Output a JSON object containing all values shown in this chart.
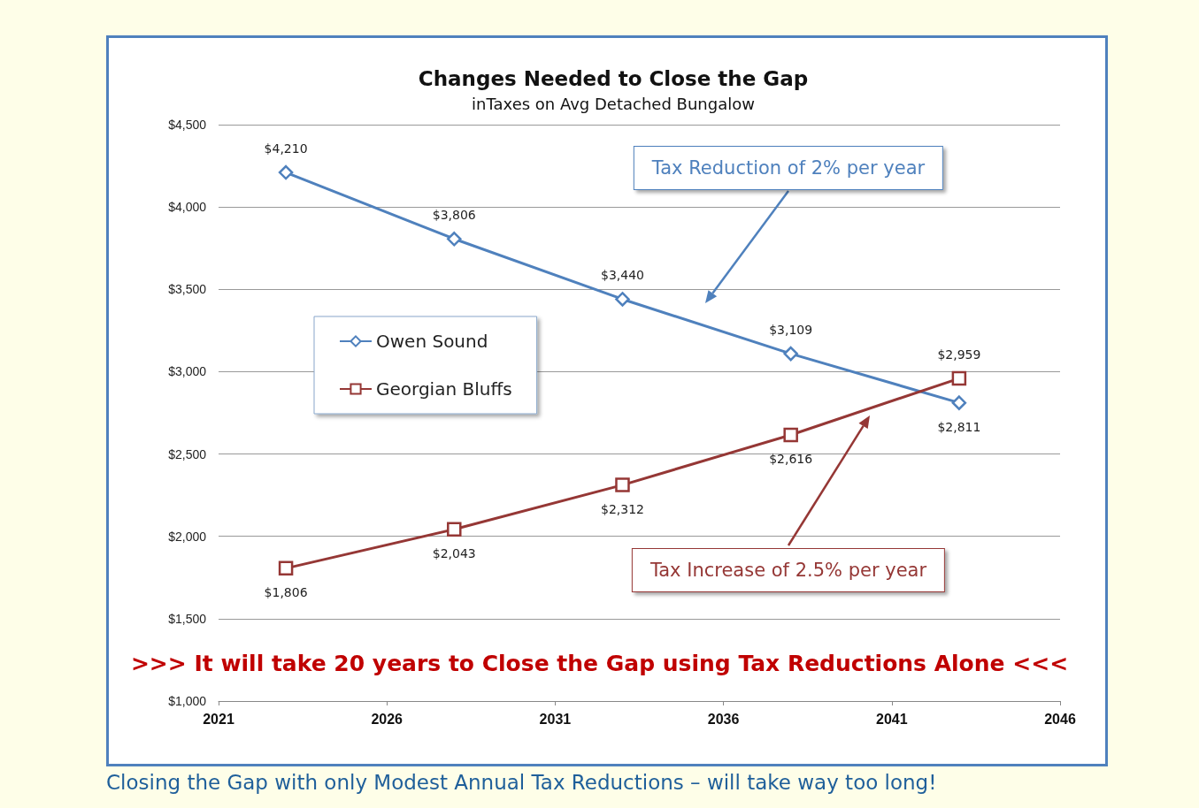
{
  "chart_data": {
    "type": "line",
    "title": "Changes Needed to Close the Gap",
    "subtitle": "inTaxes on Avg Detached Bungalow",
    "x": [
      2023,
      2028,
      2033,
      2038,
      2043
    ],
    "series": [
      {
        "name": "Owen Sound",
        "color": "#4f81bd",
        "marker": "diamond",
        "values": [
          4210,
          3806,
          3440,
          3109,
          2811
        ],
        "value_labels": [
          "$4,210",
          "$3,806",
          "$3,440",
          "$3,109",
          "$2,811"
        ]
      },
      {
        "name": "Georgian Bluffs",
        "color": "#953735",
        "marker": "square",
        "values": [
          1806,
          2043,
          2312,
          2616,
          2959
        ],
        "value_labels": [
          "$1,806",
          "$2,043",
          "$2,312",
          "$2,616",
          "$2,959"
        ]
      }
    ],
    "xlim": [
      2021,
      2046
    ],
    "xticks": [
      2021,
      2026,
      2031,
      2036,
      2041,
      2046
    ],
    "ylim": [
      1000,
      4500
    ],
    "yticks": [
      {
        "value": 1000,
        "label": "$1,000"
      },
      {
        "value": 1500,
        "label": "$1,500"
      },
      {
        "value": 2000,
        "label": "$2,000"
      },
      {
        "value": 2500,
        "label": "$2,500"
      },
      {
        "value": 3000,
        "label": "$3,000"
      },
      {
        "value": 3500,
        "label": "$3,500"
      },
      {
        "value": 4000,
        "label": "$4,000"
      },
      {
        "value": 4500,
        "label": "$4,500"
      }
    ],
    "grid": "y",
    "legend": "left",
    "annotations": [
      "Tax Reduction of 2% per year",
      "Tax Increase of 2.5% per year",
      ">>> It will take 20 years to Close the Gap using Tax Reductions Alone <<<",
      "Closing the Gap with only Modest Annual Tax Reductions – will take way too long!"
    ]
  }
}
